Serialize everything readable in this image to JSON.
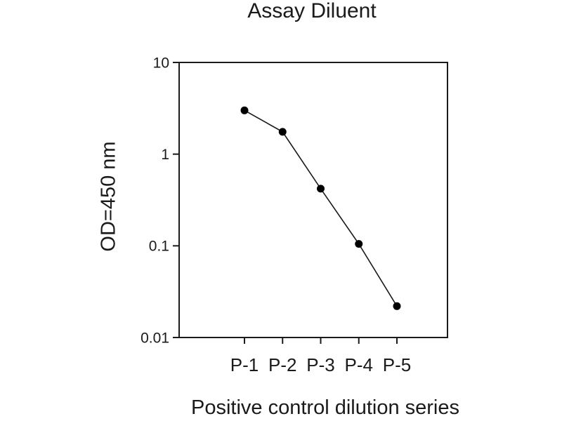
{
  "chart_data": {
    "type": "line",
    "title": "Assay Diluent",
    "xlabel": "Positive control dilution series",
    "ylabel": "OD=450 nm",
    "categories": [
      "P-1",
      "P-2",
      "P-3",
      "P-4",
      "P-5"
    ],
    "values": [
      3.0,
      1.75,
      0.42,
      0.105,
      0.022
    ],
    "y_scale": "log",
    "ylim": [
      0.01,
      10
    ],
    "y_ticks": [
      10,
      1,
      0.1,
      0.01
    ],
    "y_tick_labels": [
      "10",
      "1",
      "0.1",
      "0.01"
    ],
    "grid": false,
    "legend": false,
    "frame": "box",
    "line_color": "#1a1a1a",
    "marker_color": "#000000",
    "marker_shape": "filled-circle",
    "background_color": "#ffffff"
  }
}
